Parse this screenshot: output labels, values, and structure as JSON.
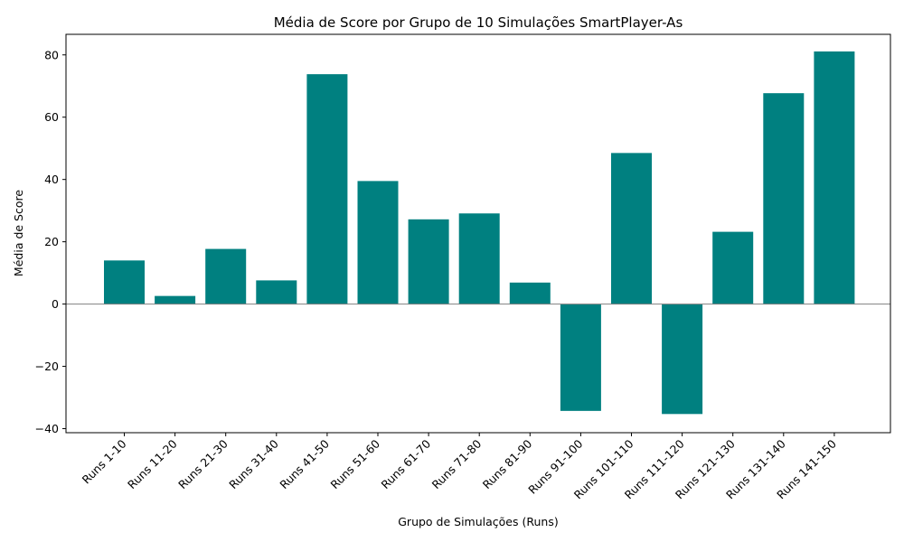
{
  "chart_data": {
    "type": "bar",
    "title": "Média de Score por Grupo de 10 Simulações SmartPlayer-As",
    "xlabel": "Grupo de Simulações (Runs)",
    "ylabel": "Média de Score",
    "categories": [
      "Runs 1-10",
      "Runs 11-20",
      "Runs 21-30",
      "Runs 31-40",
      "Runs 41-50",
      "Runs 51-60",
      "Runs 61-70",
      "Runs 71-80",
      "Runs 81-90",
      "Runs 91-100",
      "Runs 101-110",
      "Runs 111-120",
      "Runs 121-130",
      "Runs 131-140",
      "Runs 141-150"
    ],
    "values": [
      14.0,
      2.6,
      17.7,
      7.6,
      73.8,
      39.5,
      27.2,
      29.1,
      6.9,
      -34.3,
      48.5,
      -35.3,
      23.2,
      67.7,
      81.1
    ],
    "ylim": [
      -41.3,
      86.6
    ],
    "yticks": [
      -40,
      -20,
      0,
      20,
      40,
      60,
      80
    ],
    "ytick_labels": [
      "−40",
      "−20",
      "0",
      "20",
      "40",
      "60",
      "80"
    ],
    "bar_color": "#008080",
    "zero_line_color": "#808080",
    "grid": false,
    "legend": "none"
  }
}
